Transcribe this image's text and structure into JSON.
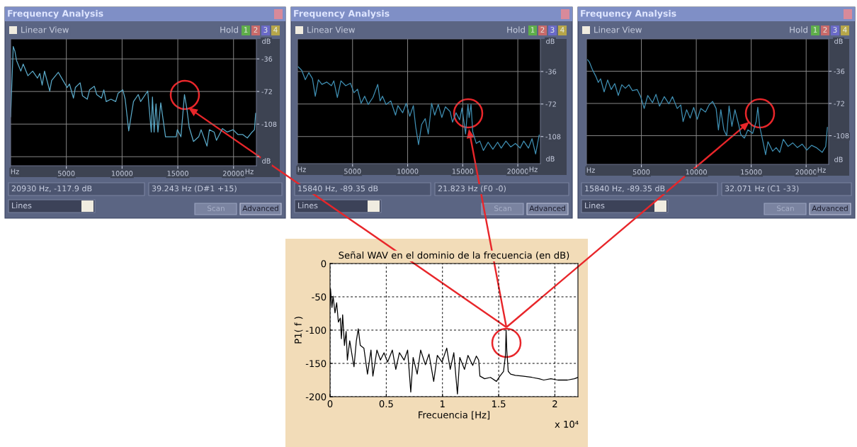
{
  "chart_data": [
    {
      "type": "line",
      "title": "Frequency Analysis",
      "annotations": [
        "Linear View",
        "Hold",
        "1",
        "2",
        "3",
        "4",
        "20930 Hz, -117.9 dB",
        "39.243 Hz (D#1 +15)",
        "Lines",
        "Scan",
        "Advanced",
        "Hz",
        "Hz",
        "dB",
        "dB"
      ],
      "xlim": [
        0,
        22050
      ],
      "ylim": [
        -154,
        -14
      ],
      "xticks": [
        5000,
        10000,
        15000,
        20000
      ],
      "yticks": [
        -36,
        -72,
        -108,
        {
          "value": -144,
          "label": null
        }
      ],
      "grid": true,
      "series": [
        {
          "color": "#5aa9c8",
          "x": [
            0,
            234,
            383,
            532,
            915,
            1128,
            1553,
            1979,
            2405,
            2617,
            2830,
            3043,
            3511,
            3681,
            4277,
            4639,
            5065,
            5277,
            5639,
            5809,
            6235,
            6448,
            6873,
            7086,
            7512,
            7725,
            8150,
            8363,
            8576,
            9001,
            9427,
            9640,
            10065,
            10278,
            10597,
            11023,
            11449,
            11661,
            12300,
            12619,
            12725,
            12874,
            13045,
            13215,
            13470,
            13896,
            14321,
            14853,
            14960,
            15279,
            15598,
            15810,
            16023,
            16407,
            16875,
            17088,
            17620,
            17833,
            18258,
            18471,
            19003,
            19429,
            19961,
            20386,
            20812,
            21237,
            21663,
            21876,
            21982
          ],
          "values": [
            -100,
            -22.3,
            -27.5,
            -37.8,
            -49.5,
            -41.7,
            -54.6,
            -49.5,
            -57.2,
            -52.1,
            -65.0,
            -49.5,
            -71.5,
            -59.8,
            -50.8,
            -58.5,
            -67.6,
            -63.7,
            -79.3,
            -67.6,
            -62.4,
            -76.7,
            -80.5,
            -70.2,
            -66.3,
            -75.4,
            -79.3,
            -70.2,
            -83.1,
            -80.5,
            -83.1,
            -74.1,
            -70.2,
            -80.5,
            -115.5,
            -83.1,
            -75.4,
            -83.1,
            -71.5,
            -116.8,
            -78.0,
            -116.8,
            -85.7,
            -116.8,
            -84.4,
            -122.0,
            -122.0,
            -122.0,
            -114.2,
            -122.0,
            -75.4,
            -90.9,
            -111.6,
            -127.2,
            -122.0,
            -114.2,
            -132.3,
            -114.2,
            -116.8,
            -125.9,
            -112.9,
            -116.8,
            -114.2,
            -119.4,
            -119.4,
            -123.3,
            -116.8,
            -114.2,
            -96.1
          ]
        }
      ]
    },
    {
      "type": "line",
      "title": "Frequency Analysis",
      "annotations": [
        "Linear View",
        "Hold",
        "1",
        "2",
        "3",
        "4",
        "15840 Hz, -89.35 dB",
        "21.823 Hz (F0 -0)",
        "Lines",
        "Scan",
        "Advanced",
        "Hz",
        "Hz",
        "dB",
        "dB"
      ],
      "xlim": [
        0,
        22050
      ],
      "ylim": [
        -138,
        0
      ],
      "xticks": [
        5000,
        10000,
        15000,
        20000
      ],
      "yticks": [
        -36,
        -72,
        -108
      ],
      "grid": true,
      "series": [
        {
          "color": "#3f8fb3",
          "x": [
            65,
            388,
            711,
            1034,
            1358,
            1616,
            1896,
            2220,
            2651,
            3082,
            3297,
            3620,
            3944,
            4375,
            4806,
            5129,
            5452,
            5776,
            6099,
            6422,
            6853,
            7284,
            7500,
            7715,
            8038,
            8469,
            8900,
            9116,
            9546,
            9870,
            10193,
            10516,
            10732,
            10990,
            11271,
            11594,
            11874,
            12176,
            12456,
            12779,
            13103,
            13426,
            13857,
            14072,
            14395,
            14719,
            14934,
            15258,
            15473,
            15581,
            15753,
            15904,
            16227,
            16551,
            16874,
            17305,
            17736,
            18167,
            18490,
            18921,
            19352,
            19783,
            20214,
            20537,
            20968,
            21292,
            21615,
            21938
          ],
          "values": [
            -30.8,
            -34.7,
            -45.1,
            -37.3,
            -43.8,
            -63.4,
            -45.1,
            -50.3,
            -47.7,
            -51.7,
            -46.4,
            -64.7,
            -46.4,
            -51.7,
            -49.0,
            -59.5,
            -55.6,
            -71.2,
            -63.4,
            -72.5,
            -64.7,
            -50.3,
            -68.6,
            -63.4,
            -72.5,
            -68.6,
            -84.3,
            -73.8,
            -81.7,
            -71.2,
            -85.6,
            -73.8,
            -97.3,
            -116.9,
            -94.7,
            -88.2,
            -105.1,
            -71.2,
            -84.3,
            -72.5,
            -86.9,
            -75.1,
            -80.4,
            -92.1,
            -81.7,
            -89.5,
            -76.4,
            -105.1,
            -72.5,
            -86.9,
            -72.5,
            -102.5,
            -115.6,
            -113.0,
            -123.4,
            -114.3,
            -122.1,
            -114.3,
            -120.8,
            -113.0,
            -119.5,
            -115.6,
            -120.8,
            -113.0,
            -120.8,
            -110.4,
            -127.3,
            -106.4
          ]
        }
      ]
    },
    {
      "type": "line",
      "title": "Frequency Analysis",
      "annotations": [
        "Linear View",
        "Hold",
        "1",
        "2",
        "3",
        "4",
        "15840 Hz, -89.35 dB",
        "32.071 Hz (C1 -33)",
        "Lines",
        "Scan",
        "Advanced",
        "Hz",
        "Hz",
        "dB",
        "dB"
      ],
      "xlim": [
        0,
        22050
      ],
      "ylim": [
        -140,
        0
      ],
      "xticks": [
        5000,
        10000,
        15000,
        20000
      ],
      "yticks": [
        -36,
        -72,
        -108
      ],
      "grid": true,
      "series": [
        {
          "color": "#3f8fb3",
          "x": [
            107,
            279,
            536,
            858,
            1073,
            1287,
            1609,
            1931,
            2253,
            2575,
            2897,
            3219,
            3541,
            3863,
            4185,
            4614,
            4936,
            5258,
            5580,
            6009,
            6331,
            6653,
            7082,
            7511,
            7833,
            8262,
            8584,
            8798,
            9120,
            9442,
            9764,
            10086,
            10408,
            10837,
            11159,
            11481,
            11803,
            12017,
            12232,
            12511,
            12768,
            12983,
            13240,
            13519,
            13841,
            14055,
            14377,
            14699,
            15128,
            15450,
            15600,
            15772,
            16094,
            16309,
            16523,
            16953,
            17274,
            17596,
            17918,
            18348,
            18777,
            19206,
            19635,
            20064,
            20493,
            20922,
            21459,
            21781,
            21931
          ],
          "values": [
            -23.3,
            -26.1,
            -34.0,
            -41.8,
            -48.5,
            -44.5,
            -59.1,
            -45.8,
            -56.4,
            -49.8,
            -63.1,
            -51.1,
            -55.1,
            -51.1,
            -57.7,
            -56.4,
            -64.4,
            -77.6,
            -63.1,
            -71.1,
            -61.8,
            -75.0,
            -64.4,
            -72.4,
            -64.4,
            -77.6,
            -73.7,
            -92.2,
            -79.0,
            -88.3,
            -76.4,
            -89.6,
            -77.6,
            -81.6,
            -73.7,
            -69.7,
            -77.6,
            -101.5,
            -79.0,
            -101.5,
            -108.1,
            -74.9,
            -97.5,
            -79.0,
            -94.9,
            -106.8,
            -110.7,
            -101.5,
            -105.4,
            -92.2,
            -76.3,
            -97.5,
            -116.0,
            -129.3,
            -114.7,
            -125.3,
            -121.3,
            -126.6,
            -112.0,
            -120.0,
            -116.0,
            -121.3,
            -117.4,
            -124.0,
            -118.7,
            -121.3,
            -126.6,
            -120.0,
            -98.8
          ]
        }
      ]
    },
    {
      "type": "line",
      "title": "Señal WAV en el dominio de la frecuencia (en dB)",
      "xlabel": "Frecuencia [Hz]",
      "ylabel": "P1( f )",
      "annotations": [
        "x 10⁴"
      ],
      "xlim": [
        0,
        2.205
      ],
      "ylim": [
        -200,
        0
      ],
      "xticks": [
        0,
        0.5,
        1,
        1.5,
        2
      ],
      "yticks": [
        -200,
        -150,
        -100,
        -50,
        0
      ],
      "grid": true,
      "line_style": "solid",
      "series": [
        {
          "color": "#000000",
          "x": [
            0,
            0.004,
            0.017,
            0.027,
            0.044,
            0.059,
            0.074,
            0.091,
            0.101,
            0.112,
            0.128,
            0.143,
            0.154,
            0.175,
            0.196,
            0.213,
            0.234,
            0.251,
            0.269,
            0.301,
            0.333,
            0.364,
            0.381,
            0.417,
            0.448,
            0.48,
            0.512,
            0.554,
            0.585,
            0.617,
            0.659,
            0.69,
            0.718,
            0.739,
            0.775,
            0.806,
            0.848,
            0.88,
            0.922,
            0.954,
            0.996,
            1.038,
            1.069,
            1.101,
            1.133,
            1.154,
            1.196,
            1.227,
            1.269,
            1.301,
            1.322,
            1.333,
            1.375,
            1.427,
            1.48,
            1.511,
            1.543,
            1.56,
            1.566,
            1.572,
            1.585,
            1.606,
            1.648,
            1.711,
            1.796,
            1.859,
            1.901,
            1.964,
            2.027,
            2.111,
            2.174,
            2.205
          ],
          "values": [
            -66,
            -38,
            -66,
            -49,
            -74,
            -59,
            -88,
            -82,
            -113,
            -77,
            -123,
            -102,
            -145,
            -116,
            -138,
            -155,
            -116,
            -98,
            -123,
            -127,
            -166,
            -130,
            -169,
            -130,
            -145,
            -134,
            -148,
            -130,
            -159,
            -134,
            -145,
            -130,
            -193,
            -141,
            -166,
            -130,
            -152,
            -136,
            -177,
            -138,
            -148,
            -127,
            -159,
            -134,
            -196,
            -141,
            -159,
            -138,
            -153,
            -139,
            -145,
            -169,
            -173,
            -171,
            -177,
            -169,
            -162,
            -138,
            -100,
            -130,
            -162,
            -166,
            -168,
            -169,
            -171,
            -173,
            -175,
            -173,
            -175,
            -175,
            -173,
            -171
          ]
        }
      ]
    }
  ]
}
